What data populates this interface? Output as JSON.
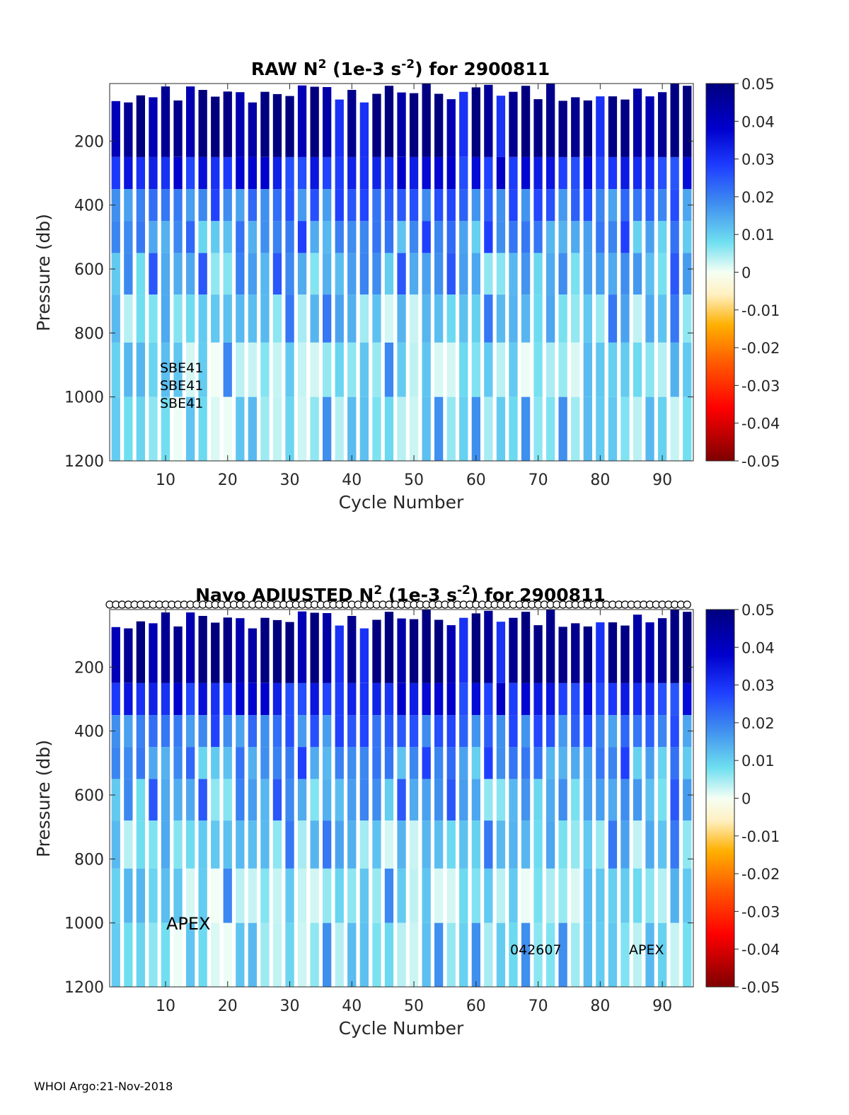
{
  "chart_data": [
    {
      "type": "heatmap",
      "title_main": "RAW N",
      "title_sup1": "2",
      "title_mid": " (1e-3 s",
      "title_sup2": "-2",
      "title_end": ") for 2900811",
      "xlabel": "Cycle Number",
      "ylabel": "Pressure (db)",
      "xticks": [
        10,
        20,
        30,
        40,
        50,
        60,
        70,
        80,
        90
      ],
      "yticks": [
        200,
        400,
        600,
        800,
        1000,
        1200
      ],
      "xlim": [
        1,
        95
      ],
      "ylim": [
        20,
        1200
      ],
      "y_reversed": true,
      "colorbar": {
        "ticks": [
          "0.05",
          "0.04",
          "0.03",
          "0.02",
          "0.01",
          "0",
          "-0.01",
          "-0.02",
          "-0.03",
          "-0.04",
          "-0.05"
        ],
        "range": [
          -0.05,
          0.05
        ],
        "colormap": "blue-cyan-white-yellow-red"
      },
      "depth_bins": [
        {
          "from": 20,
          "to": 250,
          "value": 0.048
        },
        {
          "from": 250,
          "to": 350,
          "value": 0.032
        },
        {
          "from": 350,
          "to": 450,
          "value": 0.022
        },
        {
          "from": 450,
          "to": 550,
          "value": 0.016
        },
        {
          "from": 550,
          "to": 680,
          "value": 0.013
        },
        {
          "from": 680,
          "to": 830,
          "value": 0.009
        },
        {
          "from": 830,
          "to": 1000,
          "value": 0.007
        },
        {
          "from": 1000,
          "to": 1200,
          "value": 0.006
        }
      ],
      "cycles": [
        2,
        4,
        6,
        8,
        10,
        12,
        14,
        16,
        18,
        20,
        22,
        24,
        26,
        28,
        30,
        32,
        34,
        36,
        38,
        40,
        42,
        44,
        46,
        48,
        50,
        52,
        54,
        56,
        58,
        60,
        62,
        64,
        66,
        68,
        70,
        72,
        74,
        76,
        78,
        80,
        82,
        84,
        86,
        88,
        90,
        92,
        94
      ],
      "annotations": [
        "SBE41",
        "SBE41",
        "SBE41"
      ]
    },
    {
      "type": "heatmap",
      "title_main": "Navo  ADJUSTED N",
      "title_sup1": "2",
      "title_mid": " (1e-3 s",
      "title_sup2": "-2",
      "title_end": ") for 2900811",
      "xlabel": "Cycle Number",
      "ylabel": "Pressure (db)",
      "xticks": [
        10,
        20,
        30,
        40,
        50,
        60,
        70,
        80,
        90
      ],
      "yticks": [
        200,
        400,
        600,
        800,
        1000,
        1200
      ],
      "xlim": [
        1,
        95
      ],
      "ylim": [
        20,
        1200
      ],
      "y_reversed": true,
      "colorbar": {
        "ticks": [
          "0.05",
          "0.04",
          "0.03",
          "0.02",
          "0.01",
          "0",
          "-0.01",
          "-0.02",
          "-0.03",
          "-0.04",
          "-0.05"
        ],
        "range": [
          -0.05,
          0.05
        ],
        "colormap": "blue-cyan-white-yellow-red"
      },
      "qc_markers": "open circles at every cycle along the top",
      "annotations": [
        "APEX",
        "042607",
        "APEX"
      ]
    }
  ],
  "footer": "WHOI Argo:21-Nov-2018"
}
